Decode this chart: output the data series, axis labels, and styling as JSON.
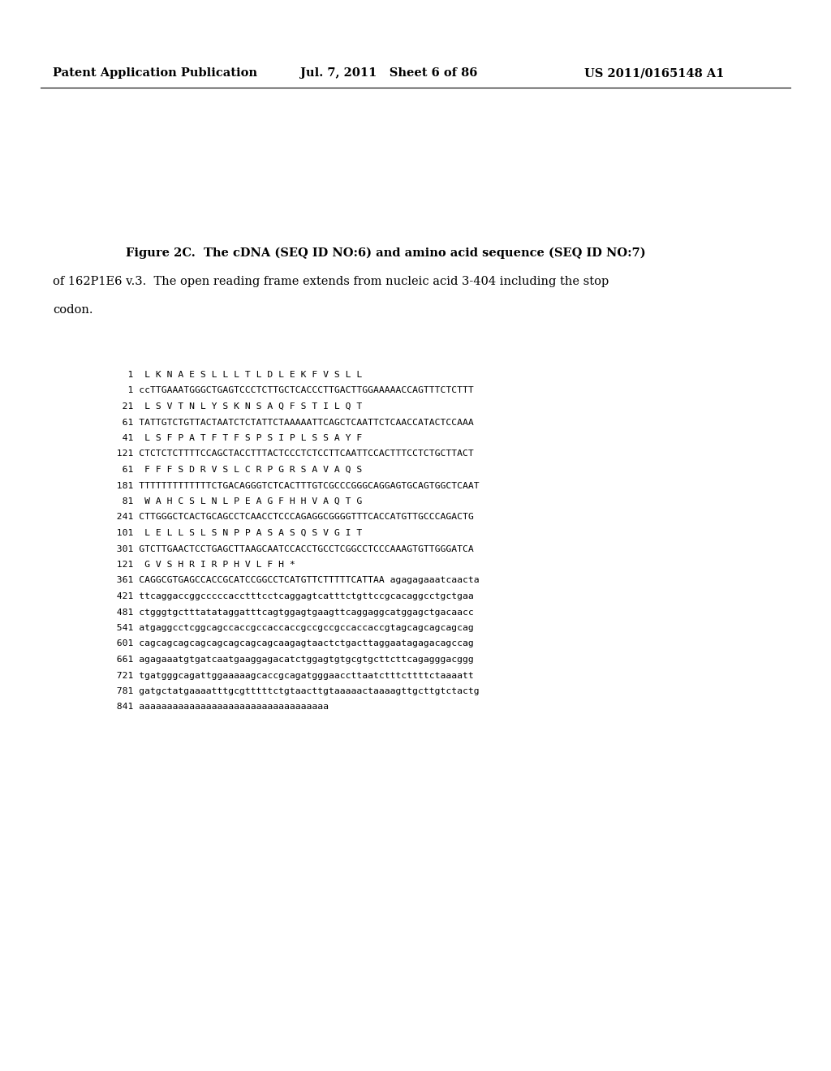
{
  "header_left": "Patent Application Publication",
  "header_mid": "Jul. 7, 2011   Sheet 6 of 86",
  "header_right": "US 2011/0165148 A1",
  "figure_caption_bold": "Figure 2C.  The cDNA (SEQ ID NO:6) and amino acid sequence (SEQ ID NO:7)",
  "figure_caption_normal": "of 162P1E6 v.3.  The open reading frame extends from nucleic acid 3-404 including the stop",
  "figure_caption_normal2": "codon.",
  "sequence_lines": [
    "    1  L K N A E S L L L T L D L E K F V S L L",
    "    1 ccTTGAAATGGGCTGAGTCCCTCTTGCTCACCCTTGACTTGGAAAAACCAGTTTCTCTTT",
    "   21  L S V T N L Y S K N S A Q F S T I L Q T",
    "   61 TATTGTCTGTTACTAATCTCTATTCTAAAAATTCAGCTCAATTCTCAACCATACTCCAAA",
    "   41  L S F P A T F T F S P S I P L S S A Y F",
    "  121 CTCTCTCTTTTCCAGCTACCTTTACTCCCTCTCCTTCAATTCCACTTTCCTCTGCTTACT",
    "   61  F F F S D R V S L C R P G R S A V A Q S",
    "  181 TTTTTTTTTTTTTCTGACAGGGTCTCACTTTGTCGCCCGGGCAGGAGTGCAGTGGCTCAAT",
    "   81  W A H C S L N L P E A G F H H V A Q T G",
    "  241 CTTGGGCTCACTGCAGCCTCAACCTCCCAGAGGCGGGGTTTCACCATGTTGCCCAGACTG",
    "  101  L E L L S L S N P P A S A S Q S V G I T",
    "  301 GTCTTGAACTCCTGAGCTTAAGCAATCCACCTGCCTCGGCCTCCCAAAGTGTTGGGATCA",
    "  121  G V S H R I R P H V L F H *",
    "  361 CAGGCGTGAGCCACCGCATCCGGCCTCATGTTCTTTTTCATTAA agagagaaatcaacta",
    "  421 ttcaggaccggcccccacctttcctcaggagtcatttctgttccgcacaggcctgctgaa",
    "  481 ctgggtgctttatataggatttcagtggagtgaagttcaggaggcatggagctgacaacc",
    "  541 atgaggcctcggcagccaccgccaccaccgccgccgccaccaccgtagcagcagcagcag",
    "  601 cagcagcagcagcagcagcagcagcaagagtaactctgacttaggaatagagacagccag",
    "  661 agagaaatgtgatcaatgaaggagacatctggagtgtgcgtgcttcttcagagggacggg",
    "  721 tgatgggcagattggaaaaagcaccgcagatgggaaccttaatctttcttttctaaaatt",
    "  781 gatgctatgaaaatttgcgtttttctgtaacttgtaaaaactaaaagttgcttgtctactg",
    "  841 aaaaaaaaaaaaaaaaaaaaaaaaaaaaaaaaaa"
  ],
  "background_color": "#ffffff",
  "text_color": "#000000",
  "header_fontsize": 10.5,
  "caption_fontsize": 10.5,
  "sequence_fontsize": 8.2
}
